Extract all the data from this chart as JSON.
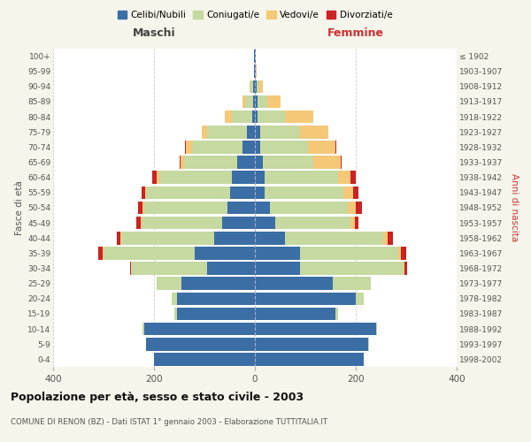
{
  "age_groups": [
    "0-4",
    "5-9",
    "10-14",
    "15-19",
    "20-24",
    "25-29",
    "30-34",
    "35-39",
    "40-44",
    "45-49",
    "50-54",
    "55-59",
    "60-64",
    "65-69",
    "70-74",
    "75-79",
    "80-84",
    "85-89",
    "90-94",
    "95-99",
    "100+"
  ],
  "birth_years": [
    "1998-2002",
    "1993-1997",
    "1988-1992",
    "1983-1987",
    "1978-1982",
    "1973-1977",
    "1968-1972",
    "1963-1967",
    "1958-1962",
    "1953-1957",
    "1948-1952",
    "1943-1947",
    "1938-1942",
    "1933-1937",
    "1928-1932",
    "1923-1927",
    "1918-1922",
    "1913-1917",
    "1908-1912",
    "1903-1907",
    "≤ 1902"
  ],
  "males": {
    "celibe": [
      200,
      215,
      220,
      155,
      155,
      145,
      95,
      120,
      80,
      65,
      55,
      50,
      45,
      35,
      25,
      15,
      5,
      4,
      3,
      2,
      2
    ],
    "coniugato": [
      0,
      1,
      2,
      5,
      10,
      50,
      150,
      180,
      185,
      160,
      165,
      165,
      145,
      105,
      100,
      80,
      40,
      15,
      5,
      0,
      0
    ],
    "vedovo": [
      0,
      0,
      0,
      0,
      0,
      0,
      0,
      1,
      1,
      2,
      2,
      3,
      5,
      8,
      12,
      10,
      15,
      5,
      2,
      0,
      0
    ],
    "divorziato": [
      0,
      0,
      0,
      0,
      0,
      0,
      2,
      10,
      8,
      8,
      10,
      7,
      8,
      2,
      1,
      0,
      0,
      0,
      0,
      0,
      0
    ]
  },
  "females": {
    "nubile": [
      215,
      225,
      240,
      160,
      200,
      155,
      90,
      90,
      60,
      40,
      30,
      20,
      20,
      15,
      10,
      10,
      5,
      5,
      3,
      2,
      2
    ],
    "coniugata": [
      0,
      1,
      2,
      5,
      15,
      75,
      205,
      195,
      195,
      150,
      155,
      155,
      145,
      100,
      95,
      80,
      55,
      20,
      5,
      0,
      0
    ],
    "vedova": [
      0,
      0,
      0,
      0,
      0,
      0,
      2,
      5,
      8,
      8,
      15,
      20,
      25,
      55,
      55,
      55,
      55,
      25,
      8,
      2,
      0
    ],
    "divorziata": [
      0,
      0,
      0,
      0,
      0,
      0,
      5,
      10,
      10,
      8,
      12,
      10,
      10,
      2,
      2,
      1,
      0,
      0,
      0,
      0,
      0
    ]
  },
  "colors": {
    "celibe": "#3a6ea5",
    "coniugato": "#c5d9a0",
    "vedovo": "#f5c878",
    "divorziato": "#cc2222"
  },
  "xlim": 400,
  "title": "Popolazione per età, sesso e stato civile - 2003",
  "subtitle": "COMUNE DI RENON (BZ) - Dati ISTAT 1° gennaio 2003 - Elaborazione TUTTITALIA.IT",
  "ylabel_left": "Fasce di età",
  "ylabel_right": "Anni di nascita",
  "xlabel_left": "Maschi",
  "xlabel_right": "Femmine",
  "legend_labels": [
    "Celibi/Nubili",
    "Coniugati/e",
    "Vedovi/e",
    "Divorziati/e"
  ],
  "bg_color": "#f5f5eb",
  "plot_bg": "#ffffff"
}
